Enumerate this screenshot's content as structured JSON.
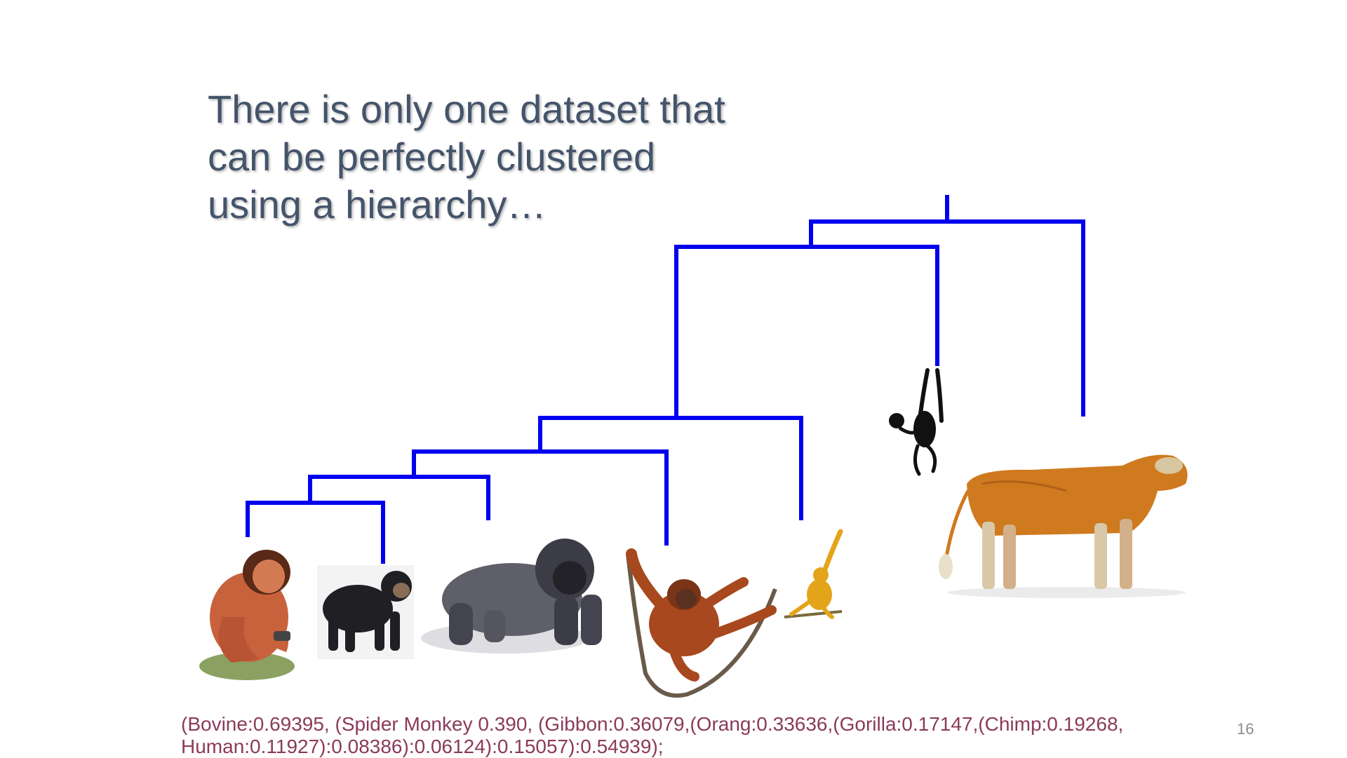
{
  "slide": {
    "title_lines": [
      "There is only one dataset that",
      "can be perfectly clustered",
      "using a hierarchy…"
    ],
    "newick_lines": [
      "(Bovine:0.69395, (Spider Monkey 0.390, (Gibbon:0.36079,(Orang:0.33636,(Gorilla:0.17147,(Chimp:0.19268,",
      "Human:0.11927):0.08386):0.06124):0.15057):0.54939);"
    ],
    "slide_number": "16"
  },
  "dendrogram": {
    "branch_color": "#0000ee",
    "leaves": [
      {
        "name": "human-illustration",
        "label": "Human"
      },
      {
        "name": "chimp-illustration",
        "label": "Chimp"
      },
      {
        "name": "gorilla-illustration",
        "label": "Gorilla"
      },
      {
        "name": "orangutan-illustration",
        "label": "Orang"
      },
      {
        "name": "gibbon-illustration",
        "label": "Gibbon"
      },
      {
        "name": "spider-monkey-illustration",
        "label": "Spider Monkey"
      },
      {
        "name": "cow-illustration",
        "label": "Bovine"
      }
    ]
  },
  "colors": {
    "title": "#44546a",
    "newick_text": "#8b3a5a",
    "slide_number": "#8c8c8c"
  }
}
